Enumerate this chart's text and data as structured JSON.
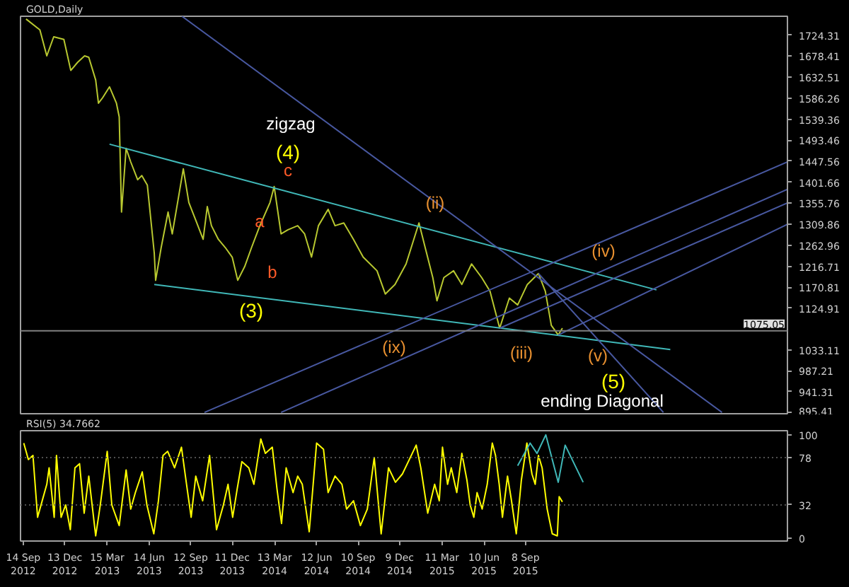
{
  "chart_data": [
    {
      "type": "line",
      "title": "GOLD,Daily",
      "xlim": [
        "2012-09-08",
        "2017-03-29"
      ],
      "ylim": [
        893,
        1766
      ],
      "tick_labels": "y",
      "yticks": [
        895.41,
        941.31,
        987.21,
        1033.11,
        1124.91,
        1170.81,
        1216.71,
        1262.96,
        1309.86,
        1355.76,
        1401.66,
        1447.56,
        1493.46,
        1539.36,
        1586.26,
        1632.51,
        1678.41,
        1724.31
      ],
      "series": [
        {
          "color": "#b8c830",
          "x": [
            "2012-09-20",
            "2012-10-20",
            "2012-11-04",
            "2012-11-19",
            "2012-12-11",
            "2012-12-26",
            "2013-01-10",
            "2013-01-25",
            "2013-02-03",
            "2013-02-18",
            "2013-02-24",
            "2013-03-05",
            "2013-03-20",
            "2013-04-04",
            "2013-04-10",
            "2013-04-15",
            "2013-04-25",
            "2013-05-05",
            "2013-05-20",
            "2013-05-29",
            "2013-06-10",
            "2013-06-25",
            "2013-06-28",
            "2013-07-10",
            "2013-07-25",
            "2013-08-03",
            "2013-08-18",
            "2013-08-27",
            "2013-09-08",
            "2013-09-23",
            "2013-10-09",
            "2013-10-18",
            "2013-10-27",
            "2013-11-11",
            "2013-11-26",
            "2013-12-11",
            "2013-12-23",
            "2014-01-07",
            "2014-01-22",
            "2014-02-09",
            "2014-03-03",
            "2014-03-12",
            "2014-03-27",
            "2014-04-11",
            "2014-05-02",
            "2014-05-17",
            "2014-06-01",
            "2014-06-16",
            "2014-07-07",
            "2014-07-22",
            "2014-08-10",
            "2014-08-31",
            "2014-09-21",
            "2014-10-21",
            "2014-11-08",
            "2014-11-29",
            "2014-12-23",
            "2015-01-20",
            "2015-02-04",
            "2015-02-19",
            "2015-02-28",
            "2015-03-15",
            "2015-04-05",
            "2015-04-23",
            "2015-05-14",
            "2015-06-05",
            "2015-06-23",
            "2015-07-14",
            "2015-08-04",
            "2015-08-22",
            "2015-09-12",
            "2015-10-06",
            "2015-10-21",
            "2015-11-03",
            "2015-11-18",
            "2015-11-27"
          ],
          "values": [
            1760,
            1736,
            1679,
            1721,
            1715,
            1647,
            1665,
            1679,
            1676,
            1626,
            1575,
            1587,
            1611,
            1575,
            1545,
            1336,
            1476,
            1446,
            1407,
            1416,
            1395,
            1246,
            1186,
            1258,
            1336,
            1288,
            1377,
            1431,
            1357,
            1318,
            1276,
            1348,
            1306,
            1276,
            1258,
            1237,
            1186,
            1216,
            1258,
            1306,
            1357,
            1392,
            1288,
            1297,
            1306,
            1288,
            1237,
            1306,
            1342,
            1306,
            1312,
            1276,
            1237,
            1207,
            1156,
            1177,
            1222,
            1312,
            1252,
            1192,
            1141,
            1192,
            1207,
            1177,
            1222,
            1192,
            1162,
            1081,
            1147,
            1132,
            1177,
            1201,
            1162,
            1087,
            1066,
            1081
          ]
        },
        {
          "color": "#40b8b8",
          "x": [
            "2013-03-20",
            "2016-06-18"
          ],
          "values": [
            1485,
            1165
          ]
        },
        {
          "color": "#40b8b8",
          "x": [
            "2013-06-25",
            "2016-07-18"
          ],
          "values": [
            1177,
            1034
          ]
        },
        {
          "color": "#4858a0",
          "x": [
            "2013-08-24",
            "2016-11-07"
          ],
          "values": [
            1766,
            896
          ]
        },
        {
          "color": "#4858a0",
          "x": [
            "2015-10-06",
            "2016-07-03"
          ],
          "values": [
            1201,
            896
          ]
        },
        {
          "color": "#4858a0",
          "x": [
            "2013-10-12",
            "2017-03-29"
          ],
          "values": [
            896,
            1446
          ]
        },
        {
          "color": "#4858a0",
          "x": [
            "2014-03-27",
            "2017-03-29"
          ],
          "values": [
            896,
            1386
          ]
        },
        {
          "color": "#4858a0",
          "x": [
            "2015-07-14",
            "2017-03-29"
          ],
          "values": [
            1081,
            1356
          ]
        },
        {
          "color": "#4858a0",
          "x": [
            "2015-11-18",
            "2017-03-29"
          ],
          "values": [
            1066,
            1309
          ]
        }
      ],
      "ref_lines": [
        {
          "axis": "y",
          "value": 1075.05,
          "label": "1075.05",
          "color": "#808080",
          "line_style": "solid"
        }
      ],
      "annotations": [
        "zigzag",
        "(4)",
        "c",
        "a",
        "b",
        "(3)",
        "(ii)",
        "(ix)",
        "(iii)",
        "(iv)",
        "(v)",
        "(5)",
        "ending Diagonal"
      ]
    },
    {
      "type": "line",
      "title": "RSI(5) 34.7662",
      "xlim": [
        "2012-09-08",
        "2017-03-29"
      ],
      "ylim": [
        -3,
        104
      ],
      "yticks": [
        0,
        32,
        78,
        100
      ],
      "xticks": [
        {
          "value": "2012-09-14",
          "label": "14 Sep 2012"
        },
        {
          "value": "2012-12-13",
          "label": "13 Dec 2012"
        },
        {
          "value": "2013-03-15",
          "label": "15 Mar 2013"
        },
        {
          "value": "2013-06-14",
          "label": "14 Jun 2013"
        },
        {
          "value": "2013-09-12",
          "label": "12 Sep 2013"
        },
        {
          "value": "2013-12-11",
          "label": "11 Dec 2013"
        },
        {
          "value": "2014-03-13",
          "label": "13 Mar 2014"
        },
        {
          "value": "2014-06-12",
          "label": "12 Jun 2014"
        },
        {
          "value": "2014-09-10",
          "label": "10 Sep 2014"
        },
        {
          "value": "2014-12-09",
          "label": "9 Dec 2014"
        },
        {
          "value": "2015-03-11",
          "label": "11 Mar 2015"
        },
        {
          "value": "2015-06-10",
          "label": "10 Jun 2015"
        },
        {
          "value": "2015-09-08",
          "label": "8 Sep 2015"
        }
      ],
      "series": [
        {
          "color": "#ffff00",
          "x": [
            "2012-09-15",
            "2012-09-25",
            "2012-10-05",
            "2012-10-15",
            "2012-10-25",
            "2012-11-04",
            "2012-11-09",
            "2012-11-20",
            "2012-11-25",
            "2012-12-05",
            "2012-12-15",
            "2012-12-25",
            "2013-01-04",
            "2013-01-14",
            "2013-01-24",
            "2013-02-03",
            "2013-02-18",
            "2013-02-28",
            "2013-03-15",
            "2013-03-25",
            "2013-04-10",
            "2013-04-25",
            "2013-05-05",
            "2013-05-15",
            "2013-05-30",
            "2013-06-09",
            "2013-06-24",
            "2013-07-04",
            "2013-07-14",
            "2013-07-24",
            "2013-08-08",
            "2013-08-23",
            "2013-09-03",
            "2013-09-13",
            "2013-09-23",
            "2013-10-08",
            "2013-10-23",
            "2013-11-07",
            "2013-11-22",
            "2013-12-02",
            "2013-12-12",
            "2013-12-22",
            "2014-01-01",
            "2014-01-16",
            "2014-01-27",
            "2014-02-11",
            "2014-02-21",
            "2014-03-08",
            "2014-03-18",
            "2014-03-28",
            "2014-04-07",
            "2014-04-22",
            "2014-05-02",
            "2014-05-12",
            "2014-05-27",
            "2014-06-12",
            "2014-06-27",
            "2014-07-07",
            "2014-07-22",
            "2014-08-06",
            "2014-08-16",
            "2014-08-31",
            "2014-09-15",
            "2014-09-30",
            "2014-10-15",
            "2014-10-30",
            "2014-11-15",
            "2014-11-30",
            "2014-12-15",
            "2014-12-30",
            "2015-01-14",
            "2015-01-24",
            "2015-02-08",
            "2015-02-23",
            "2015-03-05",
            "2015-03-12",
            "2015-03-23",
            "2015-03-31",
            "2015-04-12",
            "2015-04-23",
            "2015-05-04",
            "2015-05-11",
            "2015-05-19",
            "2015-05-26",
            "2015-06-06",
            "2015-06-17",
            "2015-06-28",
            "2015-07-05",
            "2015-07-13",
            "2015-07-20",
            "2015-07-31",
            "2015-08-08",
            "2015-08-19",
            "2015-08-30",
            "2015-09-11",
            "2015-09-22",
            "2015-09-29",
            "2015-10-06",
            "2015-10-14",
            "2015-10-25",
            "2015-11-05",
            "2015-11-16",
            "2015-11-20",
            "2015-11-27"
          ],
          "values": [
            92,
            76,
            80,
            20,
            36,
            52,
            68,
            20,
            80,
            20,
            32,
            8,
            68,
            72,
            24,
            60,
            2,
            32,
            84,
            32,
            12,
            66,
            28,
            44,
            64,
            32,
            4,
            36,
            80,
            84,
            68,
            88,
            52,
            20,
            60,
            36,
            80,
            8,
            32,
            52,
            20,
            48,
            74,
            68,
            52,
            96,
            82,
            88,
            48,
            14,
            68,
            44,
            60,
            52,
            6,
            92,
            86,
            44,
            60,
            52,
            28,
            36,
            12,
            28,
            78,
            4,
            68,
            54,
            62,
            76,
            90,
            68,
            24,
            52,
            36,
            88,
            52,
            68,
            44,
            82,
            56,
            32,
            20,
            44,
            28,
            52,
            92,
            80,
            52,
            20,
            60,
            38,
            4,
            56,
            92,
            62,
            52,
            80,
            68,
            28,
            4,
            2,
            40,
            35
          ]
        },
        {
          "color": "#40b8b8",
          "x": [
            "2015-08-22",
            "2015-09-18",
            "2015-10-03",
            "2015-10-22",
            "2015-11-18",
            "2015-12-03",
            "2016-01-11"
          ],
          "values": [
            70,
            92,
            82,
            100,
            54,
            90,
            54
          ]
        }
      ],
      "ref_lines": [
        {
          "axis": "y",
          "value": 78,
          "color": "#505050",
          "line_style": "dotted"
        },
        {
          "axis": "y",
          "value": 32,
          "color": "#505050",
          "line_style": "dotted"
        }
      ]
    }
  ]
}
